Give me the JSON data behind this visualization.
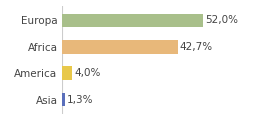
{
  "categories": [
    "Europa",
    "Africa",
    "America",
    "Asia"
  ],
  "values": [
    52.0,
    42.7,
    4.0,
    1.3
  ],
  "bar_colors": [
    "#a8bf8a",
    "#e8b87a",
    "#e8c84a",
    "#5a6fbb"
  ],
  "xlim": [
    0,
    68
  ],
  "background_color": "#ffffff",
  "bar_height": 0.52,
  "fontsize_labels": 7.5,
  "fontsize_values": 7.5,
  "label_color": "#444444",
  "spine_color": "#cccccc"
}
